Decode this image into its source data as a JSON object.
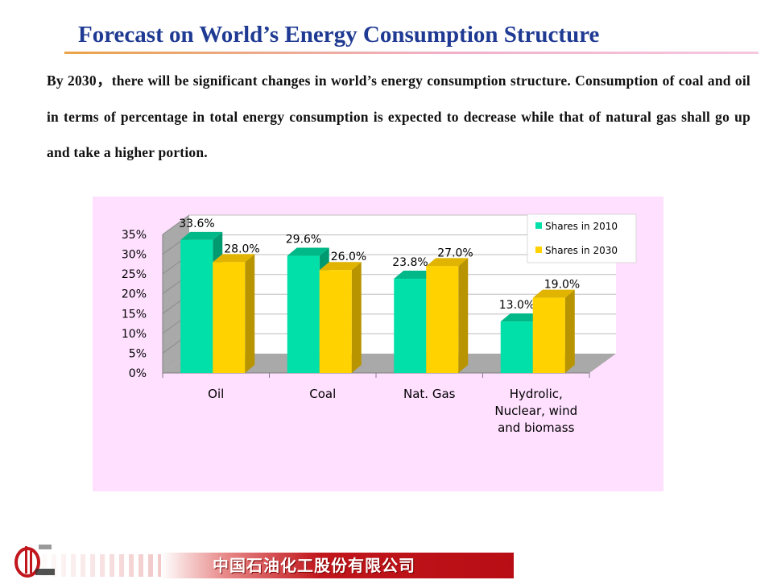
{
  "slide": {
    "title": "Forecast on World’s Energy Consumption Structure",
    "intro": "By 2030，there will be significant changes in world’s energy consumption structure. Consumption of coal and oil in terms of percentage in total energy consumption is expected to decrease while that of natural gas shall go up and take a higher portion."
  },
  "footer": {
    "company": "中国石油化工股份有限公司",
    "logo_text": "Sinopec"
  },
  "chart_data": {
    "type": "bar",
    "title": "",
    "xlabel": "",
    "ylabel": "",
    "categories": [
      "Oil",
      "Coal",
      "Nat. Gas",
      "Hydrolic, Nuclear, wind and biomass"
    ],
    "category_lines": [
      [
        "Oil"
      ],
      [
        "Coal"
      ],
      [
        "Nat. Gas"
      ],
      [
        "Hydrolic,",
        "Nuclear, wind",
        "and biomass"
      ]
    ],
    "series": [
      {
        "name": "Shares in 2010",
        "values": [
          33.6,
          29.6,
          23.8,
          13.0
        ],
        "labels": [
          "33.6%",
          "29.6%",
          "23.8%",
          "13.0%"
        ],
        "color": "#00e0a8",
        "side": "#009a70",
        "top": "#00b888"
      },
      {
        "name": "Shares in 2030",
        "values": [
          28.0,
          26.0,
          27.0,
          19.0
        ],
        "labels": [
          "28.0%",
          "26.0%",
          "27.0%",
          "19.0%"
        ],
        "color": "#ffd200",
        "side": "#b89400",
        "top": "#e0b400"
      }
    ],
    "ylim": [
      0,
      35
    ],
    "yticks": [
      0,
      5,
      10,
      15,
      20,
      25,
      30,
      35
    ],
    "ytick_labels": [
      "0%",
      "5%",
      "10%",
      "15%",
      "20%",
      "25%",
      "30%",
      "35%"
    ],
    "grid": true,
    "three_d": true,
    "legend_position": "top-right",
    "background": "#ffe0ff"
  }
}
